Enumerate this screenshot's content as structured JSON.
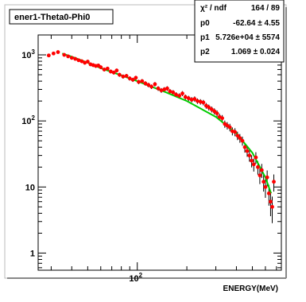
{
  "chart_data": {
    "type": "scatter",
    "title": "ener1-Theta0-Phi0",
    "xlabel": "ENERGY(MeV)",
    "ylabel": "",
    "x_scale": "log",
    "y_scale": "log",
    "xlim": [
      25,
      750
    ],
    "ylim": [
      0.55,
      2000
    ],
    "x_tick_labels": [
      {
        "value": 100,
        "base": "10",
        "exp": "2"
      }
    ],
    "y_tick_labels": [
      {
        "value": 1,
        "text": "1"
      },
      {
        "value": 10,
        "text": "10"
      },
      {
        "value": 100,
        "base": "10",
        "exp": "2"
      },
      {
        "value": 1000,
        "base": "10",
        "exp": "3"
      }
    ],
    "grid": false,
    "stats_box": {
      "rows": [
        {
          "label": "χ² / ndf",
          "value": "164 / 89"
        },
        {
          "label": "p0",
          "value": "-62.64 ± 4.55"
        },
        {
          "label": "p1",
          "value": "5.726e+04 ± 5574"
        },
        {
          "label": "p2",
          "value": "1.069 ± 0.024"
        }
      ]
    },
    "colors": {
      "points": "#ff0000",
      "fit": "#00cc00",
      "errors": "#000000"
    },
    "fit_curve": {
      "name": "fit",
      "x": [
        35,
        40,
        50,
        60,
        80,
        100,
        150,
        200,
        300,
        400,
        500,
        600,
        650
      ],
      "y": [
        1050,
        940,
        760,
        630,
        490,
        400,
        270,
        200,
        115,
        65,
        33,
        14,
        8
      ]
    },
    "series": [
      {
        "name": "data",
        "x": [
          29,
          31,
          33,
          36,
          38,
          40,
          42,
          44,
          46,
          48,
          50,
          52,
          54,
          56,
          58,
          60,
          63,
          66,
          69,
          72,
          75,
          78,
          82,
          86,
          90,
          94,
          98,
          102,
          107,
          112,
          117,
          122,
          128,
          134,
          140,
          146,
          152,
          158,
          165,
          172,
          180,
          188,
          196,
          205,
          214,
          223,
          232,
          242,
          252,
          262,
          272,
          283,
          294,
          305,
          316,
          328,
          340,
          352,
          365,
          378,
          392,
          406,
          420,
          435,
          450,
          465,
          480,
          495,
          510,
          525,
          540,
          555,
          570,
          585,
          600,
          615,
          630,
          645,
          660,
          675
        ],
        "y": [
          980,
          1050,
          1100,
          1000,
          950,
          900,
          870,
          830,
          800,
          760,
          790,
          720,
          700,
          680,
          690,
          650,
          600,
          620,
          560,
          540,
          580,
          500,
          470,
          480,
          440,
          420,
          450,
          390,
          400,
          370,
          350,
          330,
          360,
          310,
          290,
          300,
          310,
          280,
          270,
          250,
          240,
          260,
          230,
          220,
          210,
          215,
          200,
          195,
          190,
          170,
          160,
          150,
          140,
          130,
          115,
          110,
          90,
          85,
          80,
          70,
          68,
          60,
          55,
          50,
          40,
          35,
          30,
          25,
          22,
          28,
          20,
          15,
          18,
          12,
          10,
          14,
          8,
          6,
          5,
          12
        ]
      }
    ]
  }
}
